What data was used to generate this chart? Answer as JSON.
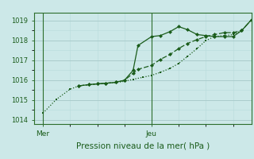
{
  "title": "Pression niveau de la mer( hPa )",
  "bg_color": "#cce8e8",
  "grid_major_color": "#aacccc",
  "grid_minor_color": "#bbdddd",
  "line_color": "#1a5c1a",
  "spine_color": "#2d6e2d",
  "ylim": [
    1013.8,
    1019.4
  ],
  "yticks": [
    1014,
    1015,
    1016,
    1017,
    1018,
    1019
  ],
  "xlim": [
    -0.08,
    1.92
  ],
  "day_labels": [
    "Mer",
    "Jeu"
  ],
  "day_positions": [
    0.0,
    1.0
  ],
  "series1_x": [
    0.0,
    0.125,
    0.25,
    0.33,
    0.42,
    0.5,
    0.58,
    0.67,
    0.75,
    0.83,
    0.92,
    1.0,
    1.08,
    1.17,
    1.25,
    1.33,
    1.42,
    1.5,
    1.58,
    1.67,
    1.75,
    1.83,
    1.92
  ],
  "series1_y": [
    1014.35,
    1015.05,
    1015.55,
    1015.72,
    1015.78,
    1015.82,
    1015.85,
    1015.88,
    1015.95,
    1016.05,
    1016.15,
    1016.25,
    1016.4,
    1016.6,
    1016.85,
    1017.2,
    1017.6,
    1018.0,
    1018.2,
    1018.25,
    1018.3,
    1018.5,
    1019.05
  ],
  "series2_x": [
    0.33,
    0.42,
    0.5,
    0.58,
    0.67,
    0.75,
    0.83,
    0.875,
    1.0,
    1.08,
    1.17,
    1.25,
    1.33,
    1.42,
    1.5,
    1.58,
    1.67,
    1.75,
    1.83,
    1.92
  ],
  "series2_y": [
    1015.72,
    1015.78,
    1015.82,
    1015.85,
    1015.9,
    1016.0,
    1016.5,
    1017.75,
    1018.2,
    1018.25,
    1018.45,
    1018.7,
    1018.55,
    1018.3,
    1018.25,
    1018.2,
    1018.2,
    1018.2,
    1018.5,
    1019.05
  ],
  "series3_x": [
    0.33,
    0.42,
    0.5,
    0.58,
    0.67,
    0.75,
    0.83,
    0.875,
    1.0,
    1.08,
    1.17,
    1.25,
    1.33,
    1.42,
    1.5,
    1.58,
    1.67,
    1.75,
    1.83,
    1.92
  ],
  "series3_y": [
    1015.72,
    1015.78,
    1015.82,
    1015.85,
    1015.9,
    1016.0,
    1016.35,
    1016.55,
    1016.75,
    1017.05,
    1017.3,
    1017.6,
    1017.85,
    1018.05,
    1018.2,
    1018.3,
    1018.4,
    1018.4,
    1018.5,
    1019.05
  ]
}
